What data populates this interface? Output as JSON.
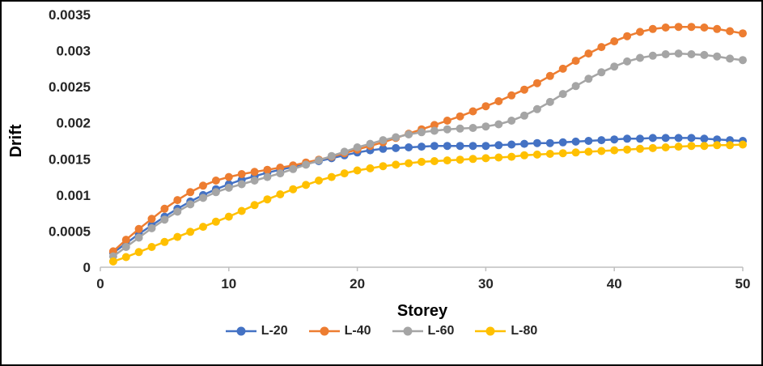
{
  "figure": {
    "y_axis_title": "Drift",
    "x_axis_title": "Storey"
  },
  "chart_data": {
    "type": "line",
    "title": "",
    "xlabel": "Storey",
    "ylabel": "Drift",
    "xlim": [
      0,
      50
    ],
    "ylim": [
      0,
      0.0035
    ],
    "grid": false,
    "legend_position": "bottom",
    "axis_line_color": "#BFBFBF",
    "x_ticks": [
      0,
      10,
      20,
      30,
      40,
      50
    ],
    "y_ticks": [
      0,
      0.0005,
      0.001,
      0.0015,
      0.002,
      0.0025,
      0.003,
      0.0035
    ],
    "y_tick_labels": [
      "0",
      "0.0005",
      "0.001",
      "0.0015",
      "0.002",
      "0.0025",
      "0.003",
      "0.0035"
    ],
    "x": [
      1,
      2,
      3,
      4,
      5,
      6,
      7,
      8,
      9,
      10,
      11,
      12,
      13,
      14,
      15,
      16,
      17,
      18,
      19,
      20,
      21,
      22,
      23,
      24,
      25,
      26,
      27,
      28,
      29,
      30,
      31,
      32,
      33,
      34,
      35,
      36,
      37,
      38,
      39,
      40,
      41,
      42,
      43,
      44,
      45,
      46,
      47,
      48,
      49,
      50
    ],
    "series": [
      {
        "name": "L-20",
        "color": "#4472C4",
        "values": [
          0.0002,
          0.00033,
          0.00046,
          0.00058,
          0.0007,
          0.00081,
          0.00091,
          0.001,
          0.00108,
          0.00115,
          0.00121,
          0.00126,
          0.00131,
          0.00135,
          0.00139,
          0.00143,
          0.00147,
          0.00151,
          0.00155,
          0.00159,
          0.00162,
          0.00164,
          0.00165,
          0.00166,
          0.00167,
          0.00168,
          0.00168,
          0.00168,
          0.00168,
          0.00168,
          0.00169,
          0.0017,
          0.00171,
          0.00172,
          0.00172,
          0.00173,
          0.00174,
          0.00175,
          0.00176,
          0.00177,
          0.00178,
          0.00178,
          0.00179,
          0.00179,
          0.00179,
          0.00179,
          0.00178,
          0.00177,
          0.00176,
          0.00175
        ]
      },
      {
        "name": "L-40",
        "color": "#ED7D31",
        "values": [
          0.00022,
          0.00038,
          0.00053,
          0.00067,
          0.00081,
          0.00093,
          0.00104,
          0.00113,
          0.0012,
          0.00125,
          0.00129,
          0.00132,
          0.00135,
          0.00138,
          0.00141,
          0.00145,
          0.00149,
          0.00153,
          0.00158,
          0.00163,
          0.00168,
          0.00173,
          0.00179,
          0.00185,
          0.00191,
          0.00197,
          0.00203,
          0.00209,
          0.00216,
          0.00223,
          0.0023,
          0.00238,
          0.00246,
          0.00255,
          0.00265,
          0.00275,
          0.00286,
          0.00296,
          0.00305,
          0.00313,
          0.0032,
          0.00326,
          0.0033,
          0.00332,
          0.00333,
          0.00333,
          0.00332,
          0.0033,
          0.00327,
          0.00324
        ]
      },
      {
        "name": "L-60",
        "color": "#A5A5A5",
        "values": [
          0.00015,
          0.00028,
          0.00041,
          0.00054,
          0.00066,
          0.00077,
          0.00087,
          0.00096,
          0.00104,
          0.0011,
          0.00115,
          0.0012,
          0.00125,
          0.0013,
          0.00136,
          0.00142,
          0.00148,
          0.00154,
          0.0016,
          0.00166,
          0.00171,
          0.00176,
          0.0018,
          0.00184,
          0.00187,
          0.00189,
          0.00191,
          0.00192,
          0.00193,
          0.00195,
          0.00198,
          0.00203,
          0.0021,
          0.00219,
          0.00229,
          0.0024,
          0.00251,
          0.00261,
          0.0027,
          0.00278,
          0.00285,
          0.0029,
          0.00293,
          0.00295,
          0.00296,
          0.00295,
          0.00294,
          0.00292,
          0.00289,
          0.00287
        ]
      },
      {
        "name": "L-80",
        "color": "#FFC000",
        "values": [
          8e-05,
          0.00014,
          0.00021,
          0.00028,
          0.00035,
          0.00042,
          0.00049,
          0.00056,
          0.00063,
          0.0007,
          0.00078,
          0.00086,
          0.00094,
          0.00101,
          0.00108,
          0.00114,
          0.0012,
          0.00125,
          0.0013,
          0.00134,
          0.00137,
          0.0014,
          0.00142,
          0.00144,
          0.00146,
          0.00147,
          0.00148,
          0.00149,
          0.0015,
          0.00151,
          0.00152,
          0.00153,
          0.00155,
          0.00156,
          0.00157,
          0.00158,
          0.00159,
          0.0016,
          0.00161,
          0.00162,
          0.00163,
          0.00164,
          0.00165,
          0.00166,
          0.00167,
          0.00168,
          0.00168,
          0.00169,
          0.00169,
          0.0017
        ]
      }
    ]
  }
}
